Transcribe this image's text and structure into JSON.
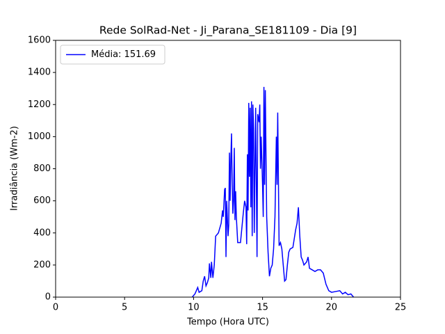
{
  "chart_data": {
    "type": "line",
    "title": "Rede SolRad-Net - Ji_Parana_SE181109 - Dia [9]",
    "xlabel": "Tempo (Hora UTC)",
    "ylabel": "Irradiância (Wm-2)",
    "x": [
      9.9,
      10.1,
      10.25,
      10.3,
      10.4,
      10.6,
      10.7,
      10.8,
      10.9,
      11.0,
      11.1,
      11.15,
      11.25,
      11.3,
      11.4,
      11.5,
      11.6,
      11.8,
      12.0,
      12.1,
      12.15,
      12.2,
      12.25,
      12.3,
      12.35,
      12.4,
      12.5,
      12.55,
      12.6,
      12.65,
      12.7,
      12.75,
      12.8,
      12.85,
      12.9,
      12.95,
      13.0,
      13.05,
      13.1,
      13.2,
      13.4,
      13.6,
      13.7,
      13.8,
      13.85,
      13.9,
      13.95,
      14.0,
      14.05,
      14.1,
      14.15,
      14.2,
      14.25,
      14.3,
      14.35,
      14.4,
      14.5,
      14.6,
      14.65,
      14.75,
      14.8,
      14.85,
      14.9,
      15.0,
      15.05,
      15.1,
      15.15,
      15.2,
      15.3,
      15.4,
      15.5,
      15.6,
      15.7,
      15.8,
      15.9,
      16.0,
      16.05,
      16.1,
      16.2,
      16.3,
      16.4,
      16.5,
      16.6,
      16.7,
      16.8,
      16.9,
      17.0,
      17.2,
      17.4,
      17.5,
      17.6,
      17.7,
      17.8,
      17.9,
      18.0,
      18.2,
      18.3,
      18.4,
      18.6,
      18.8,
      19.0,
      19.2,
      19.4,
      19.6,
      19.8,
      20.0,
      20.3,
      20.6,
      20.8,
      21.0,
      21.2,
      21.4,
      21.6
    ],
    "series": [
      {
        "name": "Média: 151.69",
        "color": "#0000ff",
        "values": [
          0,
          20,
          50,
          60,
          30,
          40,
          100,
          130,
          70,
          90,
          120,
          210,
          120,
          220,
          120,
          200,
          380,
          400,
          460,
          540,
          500,
          580,
          670,
          680,
          250,
          600,
          380,
          450,
          900,
          600,
          850,
          1020,
          700,
          520,
          600,
          930,
          480,
          660,
          500,
          340,
          340,
          520,
          600,
          560,
          330,
          890,
          540,
          1210,
          750,
          1180,
          560,
          1220,
          380,
          1200,
          1050,
          400,
          1180,
          250,
          1140,
          1090,
          1200,
          800,
          1000,
          700,
          500,
          1310,
          700,
          1290,
          500,
          280,
          130,
          180,
          200,
          300,
          500,
          1000,
          700,
          1150,
          320,
          340,
          300,
          200,
          100,
          110,
          200,
          280,
          300,
          310,
          420,
          460,
          560,
          380,
          250,
          230,
          200,
          220,
          250,
          180,
          170,
          160,
          170,
          170,
          150,
          80,
          40,
          30,
          35,
          40,
          20,
          30,
          15,
          20,
          0
        ]
      }
    ],
    "xlim": [
      0,
      25
    ],
    "xticks": [
      0,
      5,
      10,
      15,
      20,
      25
    ],
    "ylim": [
      0,
      1600
    ],
    "yticks": [
      0,
      200,
      400,
      600,
      800,
      1000,
      1200,
      1400,
      1600
    ],
    "legend": "upper left"
  }
}
